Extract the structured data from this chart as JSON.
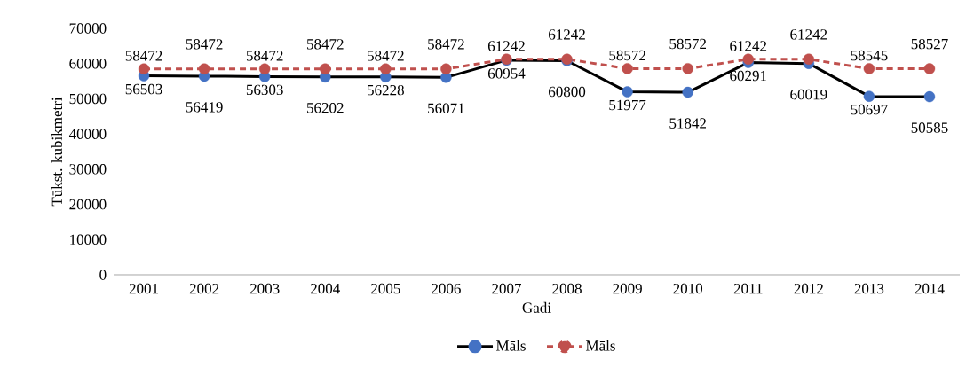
{
  "chart_data": {
    "type": "line",
    "xlabel": "Gadi",
    "ylabel": "Tūkst. kubikmetri",
    "categories": [
      "2001",
      "2002",
      "2003",
      "2004",
      "2005",
      "2006",
      "2007",
      "2008",
      "2009",
      "2010",
      "2011",
      "2012",
      "2013",
      "2014"
    ],
    "series": [
      {
        "name": "Māls",
        "color": "#000000",
        "colors": [
          "#4472c4",
          "#4472c4",
          "#4472c4",
          "#4472c4",
          "#4472c4",
          "#4472c4",
          "#4472c4",
          "#4472c4",
          "#4472c4",
          "#4472c4",
          "#4472c4",
          "#4472c4",
          "#4472c4",
          "#4472c4"
        ],
        "line_style": "solid",
        "values": [
          56503,
          56419,
          56303,
          56202,
          56228,
          56071,
          60954,
          60800,
          51977,
          51842,
          60291,
          60019,
          50697,
          50585
        ]
      },
      {
        "name": "Māls",
        "color": "#c0504d",
        "line_style": "dashed",
        "values": [
          58472,
          58472,
          58472,
          58472,
          58472,
          58472,
          61242,
          61242,
          58572,
          58572,
          61242,
          61242,
          58545,
          58527
        ]
      }
    ],
    "ylim": [
      0,
      70000
    ],
    "yticks": [
      0,
      10000,
      20000,
      30000,
      40000,
      50000,
      60000,
      70000
    ],
    "grid": false,
    "legend": "bottom",
    "marker": "circle",
    "data_labels": true
  }
}
